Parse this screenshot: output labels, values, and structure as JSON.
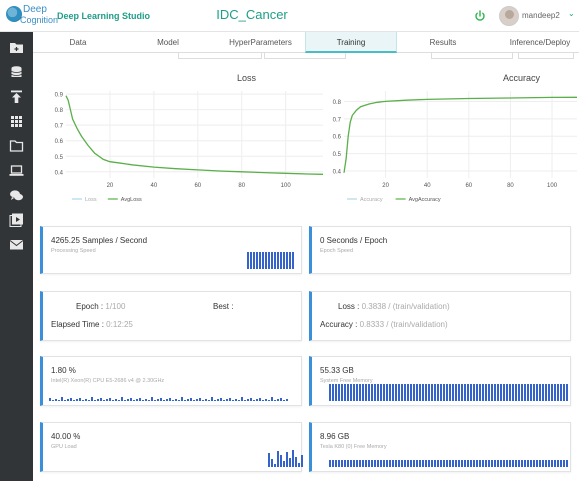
{
  "header": {
    "logo_line1": "Deep",
    "logo_line2": "Cognition",
    "app_title": "Deep Learning Studio",
    "project_title": "IDC_Cancer",
    "username": "mandeep2",
    "caret": "⌄"
  },
  "sidebar": {
    "icons": [
      "folder-add-icon",
      "database-icon",
      "upload-icon",
      "grid-icon",
      "folder-icon",
      "laptop-icon",
      "chat-icon",
      "play-icon",
      "mail-icon"
    ]
  },
  "tabs": [
    {
      "label": "Data"
    },
    {
      "label": "Model"
    },
    {
      "label": "HyperParameters"
    },
    {
      "label": "Training"
    },
    {
      "label": "Results"
    },
    {
      "label": "Inference/Deploy"
    }
  ],
  "loss_chart": {
    "title": "Loss",
    "legend": [
      "Loss",
      "AvgLoss"
    ],
    "x_ticks": [
      20,
      40,
      60,
      80,
      100
    ],
    "y_ticks": [
      "0.9",
      "0.8",
      "0.7",
      "0.6",
      "0.5",
      "0.4"
    ],
    "x_range": [
      0,
      117
    ],
    "y_range": [
      0.36,
      0.92
    ],
    "line_color": "#5aaf4a",
    "avg_points": [
      [
        0,
        0.89
      ],
      [
        1,
        0.86
      ],
      [
        2,
        0.8
      ],
      [
        3,
        0.74
      ],
      [
        5,
        0.68
      ],
      [
        7,
        0.63
      ],
      [
        10,
        0.57
      ],
      [
        13,
        0.52
      ],
      [
        17,
        0.48
      ],
      [
        20,
        0.465
      ],
      [
        25,
        0.455
      ],
      [
        30,
        0.445
      ],
      [
        40,
        0.43
      ],
      [
        50,
        0.42
      ],
      [
        60,
        0.412
      ],
      [
        70,
        0.405
      ],
      [
        80,
        0.4
      ],
      [
        90,
        0.395
      ],
      [
        100,
        0.39
      ],
      [
        110,
        0.386
      ],
      [
        117,
        0.384
      ]
    ]
  },
  "accuracy_chart": {
    "title": "Accuracy",
    "legend": [
      "Accuracy",
      "AvgAccuracy"
    ],
    "x_ticks": [
      20,
      40,
      60,
      80,
      100
    ],
    "y_ticks": [
      "0.8",
      "0.7",
      "0.6",
      "0.5",
      "0.4"
    ],
    "x_range": [
      0,
      112
    ],
    "y_range": [
      0.36,
      0.86
    ],
    "line_color": "#5aaf4a",
    "avg_points": [
      [
        0,
        0.39
      ],
      [
        1,
        0.47
      ],
      [
        2,
        0.6
      ],
      [
        3,
        0.68
      ],
      [
        4,
        0.72
      ],
      [
        6,
        0.75
      ],
      [
        8,
        0.77
      ],
      [
        12,
        0.785
      ],
      [
        16,
        0.795
      ],
      [
        20,
        0.8
      ],
      [
        30,
        0.807
      ],
      [
        40,
        0.812
      ],
      [
        60,
        0.817
      ],
      [
        80,
        0.82
      ],
      [
        100,
        0.823
      ],
      [
        112,
        0.824
      ]
    ]
  },
  "cards": {
    "processing": {
      "value": "4265.25 Samples / Second",
      "label": "Processing Speed"
    },
    "epoch_speed": {
      "value": "0 Seconds / Epoch",
      "label": "Epoch Speed"
    },
    "epoch": {
      "label": "Epoch :",
      "value": "1/100"
    },
    "best": {
      "label": "Best :"
    },
    "elapsed": {
      "label": "Elapsed Time :",
      "value": "0:12:25"
    },
    "loss": {
      "label": "Loss :",
      "value": "0.3838 / (train/validation)"
    },
    "accuracy": {
      "label": "Accuracy :",
      "value": "0.8333 / (train/validation)"
    },
    "cpu": {
      "value": "1.80 %",
      "label": "Intel(R) Xeon(R) CPU E5-2686 v4 @ 2.30GHz"
    },
    "system_memory": {
      "value": "55.33 GB",
      "label": "System Free Memory"
    },
    "gpu": {
      "value": "40.00 %",
      "label": "GPU Load"
    },
    "gpu_memory": {
      "value": "8.96 GB",
      "label": "Tesla K80 (0) Free Memory"
    }
  },
  "bar_color": "#3663c9",
  "accent_color": "#1e9e88"
}
